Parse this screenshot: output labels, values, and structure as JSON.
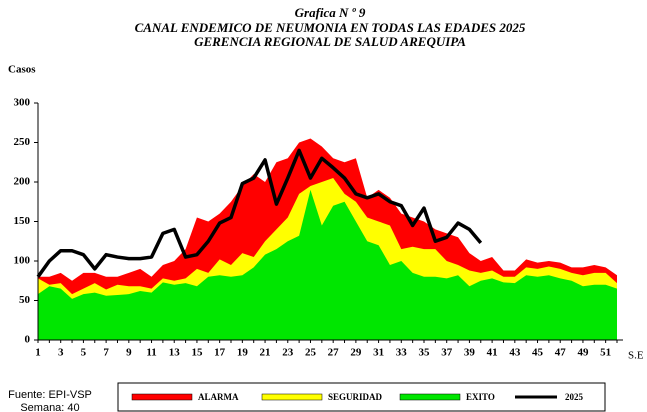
{
  "chart_data": {
    "type": "area",
    "title": "Grafica N º 9",
    "subtitle": "CANAL ENDEMICO DE NEUMONIA EN TODAS LAS EDADES 2025",
    "subtitle2": "GERENCIA REGIONAL DE SALUD AREQUIPA",
    "y_label": "Casos",
    "x_label": "S.E",
    "source": "Fuente: EPI-VSP",
    "week_note": "Semana: 40",
    "categories": [
      1,
      null,
      3,
      null,
      5,
      null,
      7,
      null,
      9,
      null,
      11,
      null,
      13,
      null,
      15,
      null,
      17,
      null,
      19,
      null,
      21,
      null,
      23,
      null,
      25,
      null,
      27,
      null,
      29,
      null,
      31,
      null,
      33,
      null,
      35,
      null,
      37,
      null,
      39,
      null,
      41,
      null,
      43,
      null,
      45,
      null,
      47,
      null,
      49,
      null,
      51,
      null
    ],
    "ylim": [
      0,
      300
    ],
    "yticks": [
      0,
      50,
      100,
      150,
      200,
      250,
      300
    ],
    "grid": false,
    "series": [
      {
        "name": "ALARMA",
        "color": "#ff0000",
        "values": [
          80,
          80,
          85,
          75,
          85,
          85,
          80,
          80,
          85,
          90,
          80,
          95,
          100,
          115,
          155,
          150,
          160,
          175,
          195,
          210,
          200,
          225,
          230,
          250,
          255,
          245,
          230,
          225,
          230,
          180,
          190,
          180,
          160,
          155,
          150,
          140,
          135,
          130,
          110,
          100,
          105,
          88,
          88,
          102,
          98,
          100,
          98,
          92,
          92,
          95,
          92,
          82
        ]
      },
      {
        "name": "SEGURIDAD",
        "color": "#ffff00",
        "values": [
          78,
          70,
          72,
          58,
          65,
          72,
          64,
          70,
          68,
          68,
          65,
          78,
          75,
          78,
          90,
          85,
          102,
          95,
          110,
          105,
          125,
          140,
          155,
          185,
          195,
          200,
          205,
          185,
          175,
          155,
          150,
          145,
          115,
          118,
          115,
          115,
          100,
          95,
          88,
          85,
          88,
          80,
          80,
          92,
          90,
          93,
          90,
          85,
          82,
          85,
          85,
          72
        ]
      },
      {
        "name": "EXITO",
        "color": "#00e600",
        "values": [
          58,
          68,
          65,
          52,
          58,
          60,
          56,
          57,
          58,
          62,
          60,
          73,
          70,
          72,
          68,
          80,
          82,
          80,
          82,
          92,
          108,
          115,
          125,
          132,
          190,
          145,
          170,
          175,
          150,
          125,
          120,
          95,
          100,
          85,
          80,
          80,
          78,
          82,
          68,
          75,
          78,
          73,
          72,
          82,
          80,
          82,
          78,
          75,
          68,
          70,
          70,
          65
        ]
      },
      {
        "name": "2025",
        "color": "#000000",
        "line": true,
        "values": [
          80,
          100,
          113,
          113,
          108,
          90,
          108,
          105,
          103,
          103,
          105,
          135,
          140,
          105,
          108,
          125,
          148,
          155,
          198,
          205,
          228,
          172,
          205,
          240,
          205,
          230,
          218,
          205,
          185,
          180,
          185,
          175,
          170,
          145,
          167,
          125,
          130,
          148,
          140,
          123,
          null,
          null,
          null,
          null,
          null,
          null,
          null,
          null,
          null,
          null,
          null,
          null
        ]
      }
    ]
  }
}
